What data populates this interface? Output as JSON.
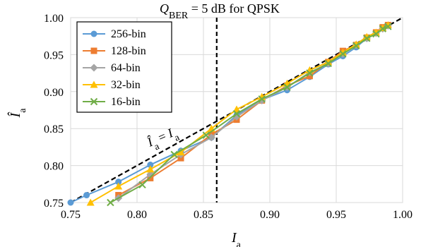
{
  "chart_data": {
    "type": "line",
    "title_prefix": "Q",
    "title_sub": "BER",
    "title_suffix": " = 5 dB for QPSK",
    "xlabel": "I",
    "xlabel_sub": "a",
    "ylabel": "Î",
    "ylabel_sub": "a",
    "xlim": [
      0.75,
      1.0
    ],
    "ylim": [
      0.75,
      1.0
    ],
    "x_ticks": [
      "0.75",
      "0.80",
      "0.85",
      "0.90",
      "0.95",
      "1.00"
    ],
    "y_ticks": [
      "0.75",
      "0.80",
      "0.85",
      "0.90",
      "0.95",
      "1.00"
    ],
    "reference_vline_x": 0.86,
    "diagonal_label_left": "Î",
    "diagonal_label_left_sub": "a",
    "diagonal_label_eq": " = ",
    "diagonal_label_right": "I",
    "diagonal_label_right_sub": "a",
    "legend_position": "top-left",
    "series": [
      {
        "name": "256-bin",
        "color": "#5b9bd5",
        "marker": "circle",
        "x": [
          0.75,
          0.762,
          0.786,
          0.81,
          0.833,
          0.856,
          0.875,
          0.894,
          0.913,
          0.93,
          0.944,
          0.955,
          0.965,
          0.973,
          0.98,
          0.985,
          0.989
        ],
        "y": [
          0.75,
          0.76,
          0.778,
          0.801,
          0.82,
          0.838,
          0.868,
          0.889,
          0.902,
          0.92,
          0.937,
          0.948,
          0.96,
          0.972,
          0.98,
          0.986,
          0.99
        ]
      },
      {
        "name": "128-bin",
        "color": "#ed7d31",
        "marker": "square",
        "x": [
          0.786,
          0.81,
          0.833,
          0.856,
          0.875,
          0.894,
          0.913,
          0.93,
          0.944,
          0.955,
          0.965,
          0.973,
          0.98,
          0.985,
          0.989
        ],
        "y": [
          0.76,
          0.783,
          0.81,
          0.842,
          0.862,
          0.888,
          0.908,
          0.921,
          0.94,
          0.955,
          0.963,
          0.973,
          0.98,
          0.987,
          0.99
        ]
      },
      {
        "name": "64-bin",
        "color": "#a5a5a5",
        "marker": "diamond",
        "x": [
          0.786,
          0.81,
          0.833,
          0.856,
          0.875,
          0.894,
          0.913,
          0.93,
          0.944,
          0.955,
          0.965,
          0.973,
          0.98,
          0.985,
          0.989
        ],
        "y": [
          0.756,
          0.788,
          0.815,
          0.838,
          0.866,
          0.888,
          0.906,
          0.926,
          0.938,
          0.951,
          0.963,
          0.972,
          0.979,
          0.985,
          0.989
        ]
      },
      {
        "name": "32-bin",
        "color": "#ffc000",
        "marker": "triangle",
        "x": [
          0.765,
          0.786,
          0.81,
          0.833,
          0.856,
          0.875,
          0.894,
          0.913,
          0.93,
          0.944,
          0.955,
          0.965,
          0.973,
          0.98,
          0.985,
          0.989
        ],
        "y": [
          0.75,
          0.772,
          0.795,
          0.818,
          0.85,
          0.876,
          0.893,
          0.911,
          0.929,
          0.94,
          0.953,
          0.964,
          0.974,
          0.98,
          0.986,
          0.99
        ]
      },
      {
        "name": "16-bin",
        "color": "#70ad47",
        "marker": "x",
        "x": [
          0.78,
          0.804,
          0.828,
          0.852,
          0.875,
          0.894,
          0.913,
          0.93,
          0.944,
          0.955,
          0.965,
          0.973,
          0.98,
          0.985,
          0.989
        ],
        "y": [
          0.75,
          0.774,
          0.815,
          0.841,
          0.87,
          0.89,
          0.906,
          0.925,
          0.938,
          0.951,
          0.962,
          0.972,
          0.978,
          0.985,
          0.988
        ]
      }
    ]
  }
}
